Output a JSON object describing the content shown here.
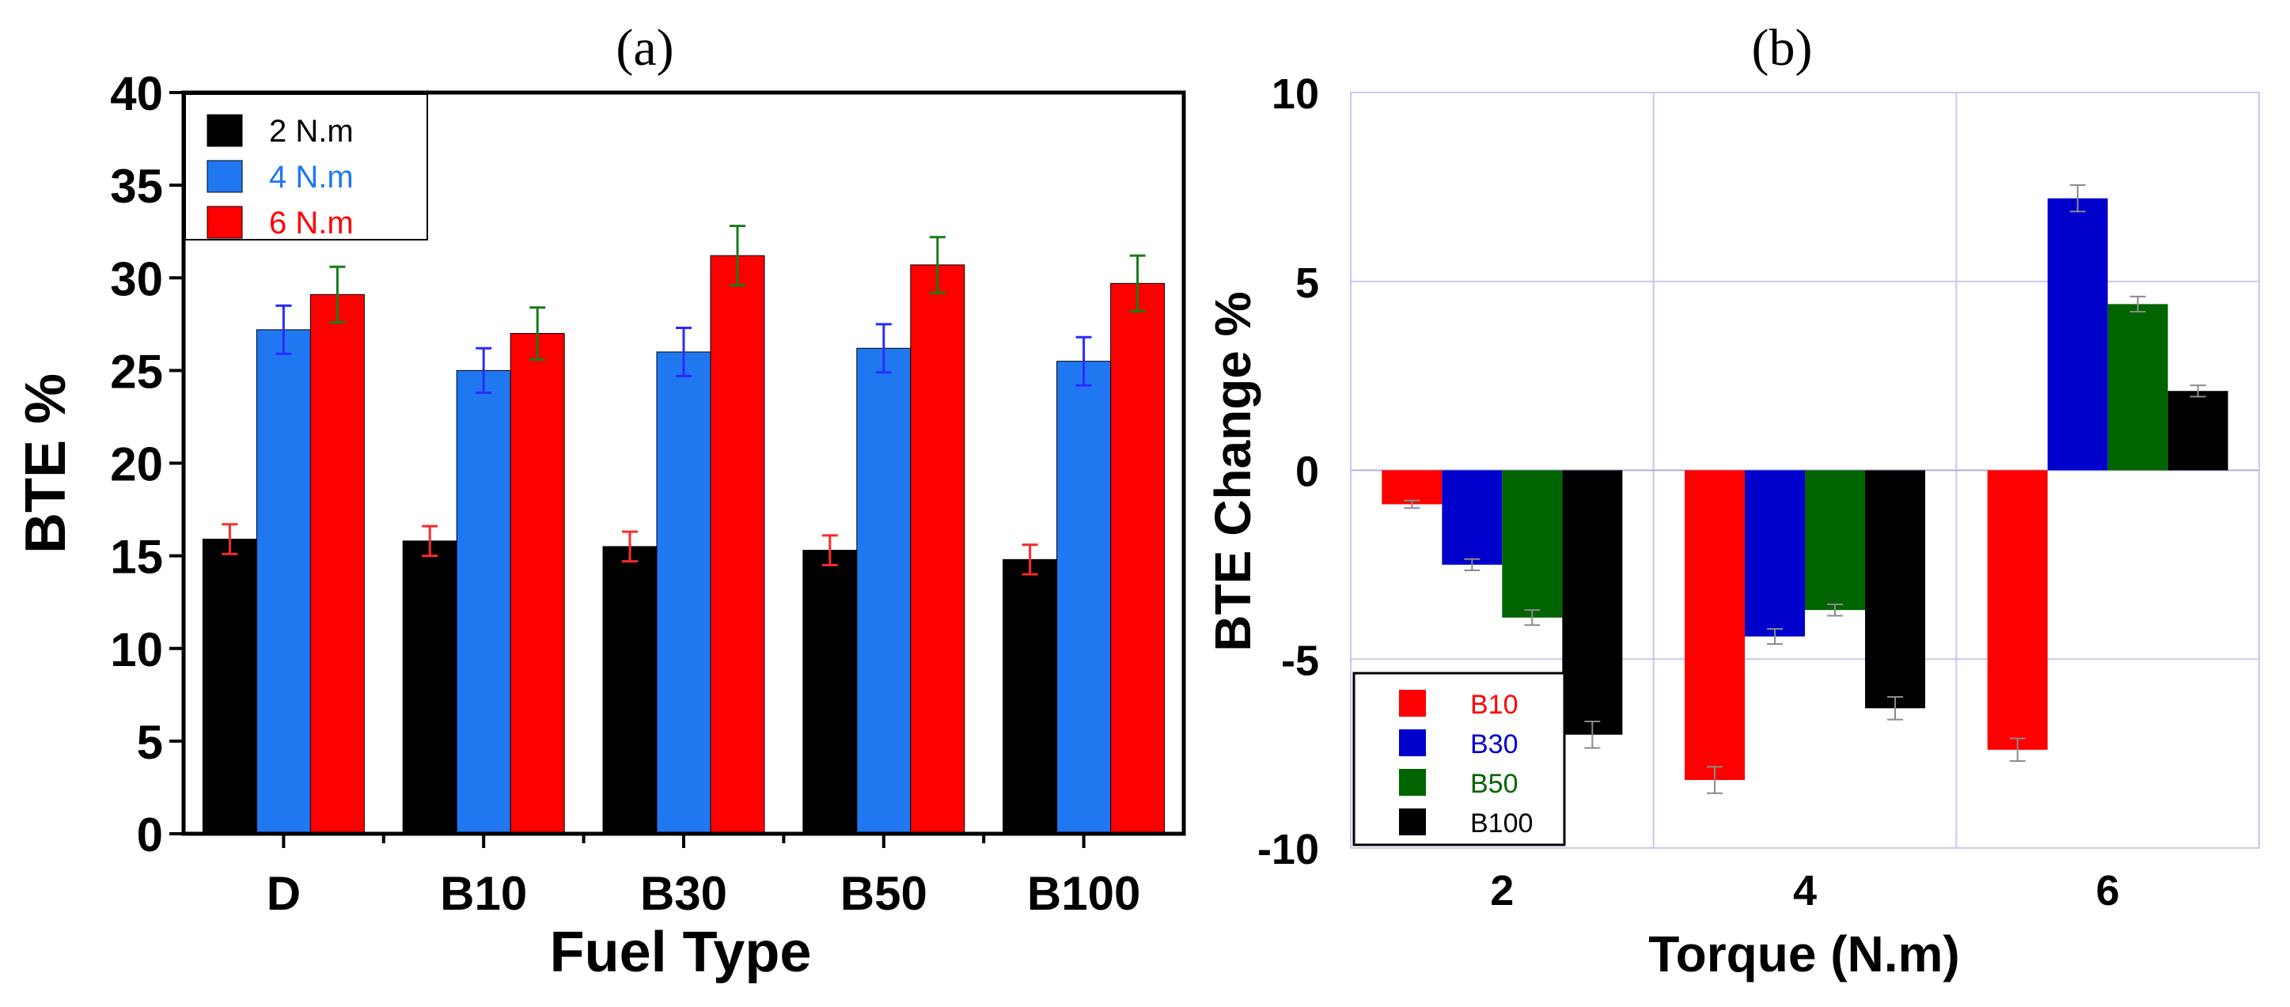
{
  "panels": {
    "a": {
      "label": "(a)"
    },
    "b": {
      "label": "(b)"
    }
  },
  "chart_data": [
    {
      "type": "bar",
      "panel": "(a)",
      "xlabel": "Fuel Type",
      "ylabel": "BTE %",
      "categories": [
        "D",
        "B10",
        "B30",
        "B50",
        "B100"
      ],
      "ylim": [
        0,
        40
      ],
      "yticks": [
        "0",
        "5",
        "10",
        "15",
        "20",
        "25",
        "30",
        "35",
        "40"
      ],
      "grid": false,
      "legend_position": "top-left",
      "series": [
        {
          "name": "2  N.m",
          "color": "#000000",
          "legend_text_color": "#000000",
          "error_color": "#ff2a2a",
          "values": [
            15.9,
            15.8,
            15.5,
            15.3,
            14.8
          ],
          "errors": [
            0.8,
            0.8,
            0.8,
            0.8,
            0.8
          ]
        },
        {
          "name": "4 N.m",
          "color": "#1f78f0",
          "legend_text_color": "#1f78f0",
          "error_color": "#2b2bff",
          "values": [
            27.2,
            25.0,
            26.0,
            26.2,
            25.5
          ],
          "errors": [
            1.3,
            1.2,
            1.3,
            1.3,
            1.3
          ]
        },
        {
          "name": "6 N.m",
          "color": "#ff0000",
          "legend_text_color": "#ff0000",
          "error_color": "#1a7a1a",
          "values": [
            29.1,
            27.0,
            31.2,
            30.7,
            29.7
          ],
          "errors": [
            1.5,
            1.4,
            1.6,
            1.5,
            1.5
          ]
        }
      ]
    },
    {
      "type": "bar",
      "panel": "(b)",
      "xlabel": "Torque (N.m)",
      "ylabel": "BTE Change %",
      "categories": [
        "2",
        "4",
        "6"
      ],
      "ylim": [
        -10,
        10
      ],
      "yticks": [
        "-10",
        "-5",
        "0",
        "5",
        "10"
      ],
      "grid": true,
      "legend_position": "bottom-left",
      "series": [
        {
          "name": "B10",
          "color": "#ff0000",
          "values": [
            -0.9,
            -8.2,
            -7.4
          ],
          "errors": [
            0.1,
            0.35,
            0.3
          ]
        },
        {
          "name": "B30",
          "color": "#0000cc",
          "values": [
            -2.5,
            -4.4,
            7.2
          ],
          "errors": [
            0.15,
            0.2,
            0.35
          ]
        },
        {
          "name": "B50",
          "color": "#006400",
          "values": [
            -3.9,
            -3.7,
            4.4
          ],
          "errors": [
            0.2,
            0.15,
            0.2
          ]
        },
        {
          "name": "B100",
          "color": "#000000",
          "values": [
            -7.0,
            -6.3,
            2.1
          ],
          "errors": [
            0.35,
            0.3,
            0.15
          ]
        }
      ]
    }
  ]
}
